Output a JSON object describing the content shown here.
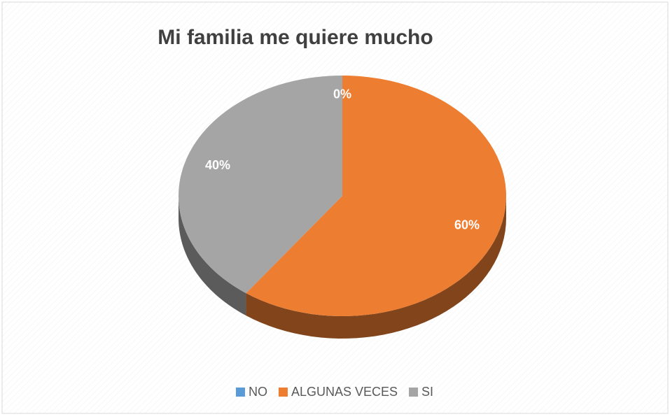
{
  "chart_data": {
    "type": "pie",
    "title": "Mi familia me quiere mucho",
    "categories": [
      "NO",
      "ALGUNAS VECES",
      "SI"
    ],
    "values": [
      0,
      60,
      40
    ],
    "value_labels": [
      "0%",
      "60%",
      "40%"
    ],
    "colors": [
      "#5b9bd5",
      "#ed7d31",
      "#a5a5a5"
    ],
    "legend": "bottom"
  }
}
